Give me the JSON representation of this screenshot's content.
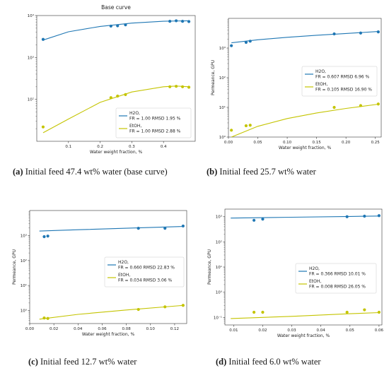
{
  "colors": {
    "h2o": "#1f77b4",
    "etoh": "#c4c400"
  },
  "chart_data": [
    {
      "type": "scatter",
      "title": "Base curve",
      "caption_label": "(a)",
      "caption_text": "Initial feed 47.4 wt% water (base curve)",
      "xlabel": "Water weight fraction, %",
      "ylabel": "",
      "yscale": "log",
      "xlim": [
        0,
        0.5
      ],
      "ylim": [
        10,
        10000
      ],
      "xticks": [
        0.1,
        0.2,
        0.3,
        0.4
      ],
      "xtick_labels": [
        "0.1",
        "0.2",
        "0.3",
        "0.4"
      ],
      "yticks": [
        100,
        1000,
        10000
      ],
      "ytick_labels": [
        "10²",
        "10³",
        "10⁴"
      ],
      "legend_position": "lower-right",
      "series": [
        {
          "name": "H2O",
          "stat": "FR = 1.00  RMSD 1.95 %",
          "points": [
            [
              0.02,
              2700
            ],
            [
              0.234,
              5600
            ],
            [
              0.255,
              5700
            ],
            [
              0.28,
              6000
            ],
            [
              0.42,
              7300
            ],
            [
              0.44,
              7500
            ],
            [
              0.46,
              7300
            ],
            [
              0.48,
              7200
            ]
          ],
          "curve": [
            [
              0.02,
              2600
            ],
            [
              0.1,
              4100
            ],
            [
              0.2,
              5500
            ],
            [
              0.3,
              6600
            ],
            [
              0.4,
              7300
            ],
            [
              0.48,
              7500
            ]
          ]
        },
        {
          "name": "EtOH",
          "stat": "FR = 1.00  RMSD 2.88 %",
          "points": [
            [
              0.02,
              22
            ],
            [
              0.234,
              110
            ],
            [
              0.255,
              120
            ],
            [
              0.28,
              130
            ],
            [
              0.42,
              200
            ],
            [
              0.44,
              205
            ],
            [
              0.46,
              200
            ],
            [
              0.48,
              195
            ]
          ],
          "curve": [
            [
              0.02,
              16
            ],
            [
              0.1,
              34
            ],
            [
              0.2,
              85
            ],
            [
              0.3,
              150
            ],
            [
              0.4,
              200
            ],
            [
              0.44,
              208
            ],
            [
              0.48,
              200
            ]
          ]
        }
      ]
    },
    {
      "type": "scatter",
      "title": "",
      "caption_label": "(b)",
      "caption_text": "Initial feed 25.7 wt% water",
      "xlabel": "Water weight fraction, %",
      "ylabel": "Permeance, GPU",
      "yscale": "log",
      "xlim": [
        0,
        0.26
      ],
      "ylim": [
        1,
        10000
      ],
      "xticks": [
        0.0,
        0.05,
        0.1,
        0.15,
        0.2,
        0.25
      ],
      "xtick_labels": [
        "0.00",
        "0.05",
        "0.10",
        "0.15",
        "0.20",
        "0.25"
      ],
      "yticks": [
        1,
        10,
        100,
        1000
      ],
      "ytick_labels": [
        "10⁰",
        "10¹",
        "10²",
        "10³"
      ],
      "legend_position": "center-right",
      "series": [
        {
          "name": "H2O",
          "stat": "FR = 0.607  RMSD 6.96 %",
          "points": [
            [
              0.005,
              1200
            ],
            [
              0.03,
              1550
            ],
            [
              0.037,
              1700
            ],
            [
              0.18,
              3000
            ],
            [
              0.225,
              3200
            ],
            [
              0.255,
              3500
            ]
          ],
          "curve": [
            [
              0.005,
              1500
            ],
            [
              0.05,
              1900
            ],
            [
              0.1,
              2300
            ],
            [
              0.15,
              2700
            ],
            [
              0.2,
              3100
            ],
            [
              0.255,
              3600
            ]
          ]
        },
        {
          "name": "EtOH",
          "stat": "FR = 0.105  RMSD 16.90 %",
          "points": [
            [
              0.005,
              1.7
            ],
            [
              0.03,
              2.4
            ],
            [
              0.037,
              2.5
            ],
            [
              0.18,
              10
            ],
            [
              0.225,
              11.5
            ],
            [
              0.255,
              13
            ]
          ],
          "curve": [
            [
              0.005,
              1.0
            ],
            [
              0.05,
              2.3
            ],
            [
              0.1,
              4.2
            ],
            [
              0.15,
              6.5
            ],
            [
              0.2,
              9.2
            ],
            [
              0.255,
              12.8
            ]
          ]
        }
      ]
    },
    {
      "type": "scatter",
      "title": "",
      "caption_label": "(c)",
      "caption_text": "Initial feed 12.7 wt% water",
      "xlabel": "Water weight fraction, %",
      "ylabel": "Permeance, GPU",
      "yscale": "log",
      "xlim": [
        0,
        0.13
      ],
      "ylim": [
        0.3,
        10000
      ],
      "xticks": [
        0.0,
        0.02,
        0.04,
        0.06,
        0.08,
        0.1,
        0.12
      ],
      "xtick_labels": [
        "0.00",
        "0.02",
        "0.04",
        "0.06",
        "0.08",
        "0.10",
        "0.12"
      ],
      "yticks": [
        1,
        10,
        100,
        1000
      ],
      "ytick_labels": [
        "10⁰",
        "10¹",
        "10²",
        "10³"
      ],
      "legend_position": "center-right",
      "series": [
        {
          "name": "H2O",
          "stat": "FR = 0.660  RMSD 22.83 %",
          "points": [
            [
              0.012,
              900
            ],
            [
              0.015,
              950
            ],
            [
              0.09,
              1950
            ],
            [
              0.112,
              1950
            ],
            [
              0.127,
              2400
            ]
          ],
          "curve": [
            [
              0.008,
              1500
            ],
            [
              0.04,
              1700
            ],
            [
              0.08,
              1950
            ],
            [
              0.127,
              2300
            ]
          ]
        },
        {
          "name": "EtOH",
          "stat": "FR = 0.034  RMSD 3.06 %",
          "points": [
            [
              0.012,
              0.5
            ],
            [
              0.015,
              0.48
            ],
            [
              0.09,
              1.1
            ],
            [
              0.112,
              1.4
            ],
            [
              0.127,
              1.6
            ]
          ],
          "curve": [
            [
              0.008,
              0.45
            ],
            [
              0.04,
              0.7
            ],
            [
              0.08,
              1.05
            ],
            [
              0.127,
              1.6
            ]
          ]
        }
      ]
    },
    {
      "type": "scatter",
      "title": "",
      "caption_label": "(d)",
      "caption_text": "Initial feed 6.0 wt% water",
      "xlabel": "Water weight fraction, %",
      "ylabel": "Permeance, GPU",
      "yscale": "log",
      "xlim": [
        0.007,
        0.061
      ],
      "ylim": [
        0.05,
        2000
      ],
      "xticks": [
        0.01,
        0.02,
        0.03,
        0.04,
        0.05,
        0.06
      ],
      "xtick_labels": [
        "0.01",
        "0.02",
        "0.03",
        "0.04",
        "0.05",
        "0.06"
      ],
      "yticks": [
        0.1,
        1,
        10,
        100,
        1000
      ],
      "ytick_labels": [
        "10⁻¹",
        "10⁰",
        "10¹",
        "10²",
        "10³"
      ],
      "legend_position": "center-right",
      "series": [
        {
          "name": "H2O",
          "stat": "FR = 0.366  RMSD 10.01 %",
          "points": [
            [
              0.017,
              720
            ],
            [
              0.02,
              800
            ],
            [
              0.049,
              1000
            ],
            [
              0.055,
              1050
            ],
            [
              0.06,
              1100
            ]
          ],
          "curve": [
            [
              0.009,
              880
            ],
            [
              0.03,
              950
            ],
            [
              0.05,
              1020
            ],
            [
              0.06,
              1060
            ]
          ]
        },
        {
          "name": "EtOH",
          "stat": "FR = 0.008  RMSD 26.05 %",
          "points": [
            [
              0.017,
              0.16
            ],
            [
              0.02,
              0.16
            ],
            [
              0.049,
              0.16
            ],
            [
              0.055,
              0.2
            ],
            [
              0.06,
              0.16
            ]
          ],
          "curve": [
            [
              0.009,
              0.09
            ],
            [
              0.03,
              0.11
            ],
            [
              0.05,
              0.14
            ],
            [
              0.06,
              0.155
            ]
          ]
        }
      ]
    }
  ]
}
